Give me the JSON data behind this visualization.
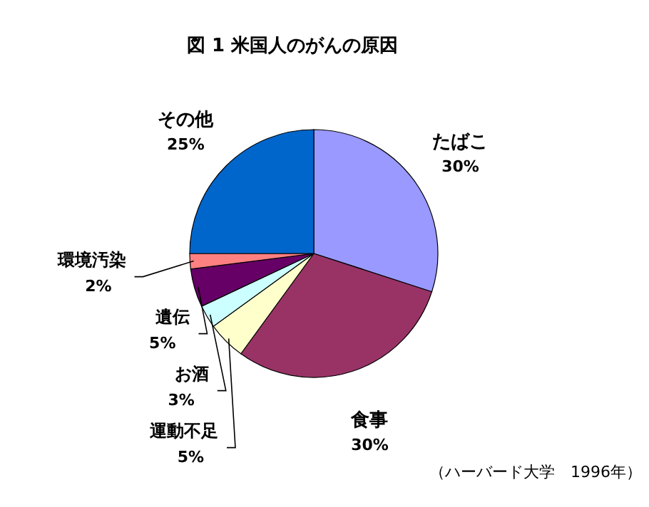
{
  "chart_data": {
    "type": "pie",
    "title": "図 1 米国人のがんの原因",
    "categories": [
      "たばこ",
      "食事",
      "運動不足",
      "お酒",
      "遺伝",
      "環境汚染",
      "その他"
    ],
    "values": [
      30,
      30,
      5,
      3,
      5,
      2,
      25
    ],
    "colors": [
      "#9999ff",
      "#993366",
      "#ffffcc",
      "#ccffff",
      "#660066",
      "#ff8080",
      "#0066cc"
    ],
    "value_labels": [
      "30%",
      "30%",
      "5%",
      "3%",
      "5%",
      "2%",
      "25%"
    ],
    "annotations": [
      "（ハーバード大学　1996年）"
    ]
  }
}
